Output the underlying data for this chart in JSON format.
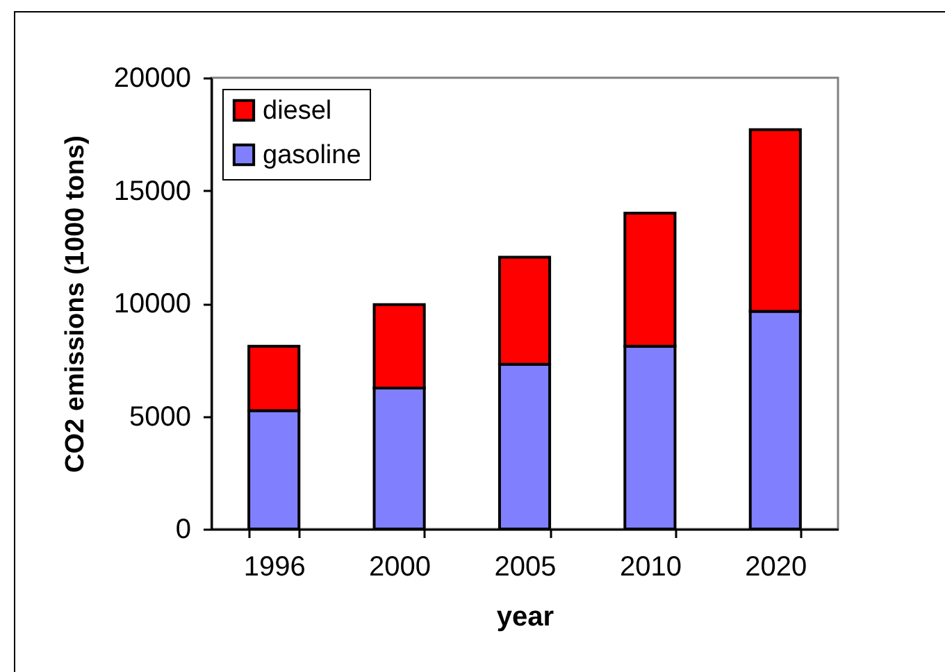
{
  "chart_data": {
    "type": "bar",
    "xlabel": "year",
    "ylabel": "CO2 emissions (1000 tons)",
    "categories": [
      "1996",
      "2000",
      "2005",
      "2010",
      "2020"
    ],
    "stacked": true,
    "series": [
      {
        "name": "gasoline",
        "color": "#8080ff",
        "values": [
          5250,
          6250,
          7300,
          8100,
          9650
        ]
      },
      {
        "name": "diesel",
        "color": "#ff0000",
        "values": [
          2850,
          3700,
          4750,
          5900,
          8050
        ]
      }
    ],
    "ylim": [
      0,
      20000
    ],
    "yticks": [
      0,
      5000,
      10000,
      15000,
      20000
    ],
    "legend": "top left"
  }
}
